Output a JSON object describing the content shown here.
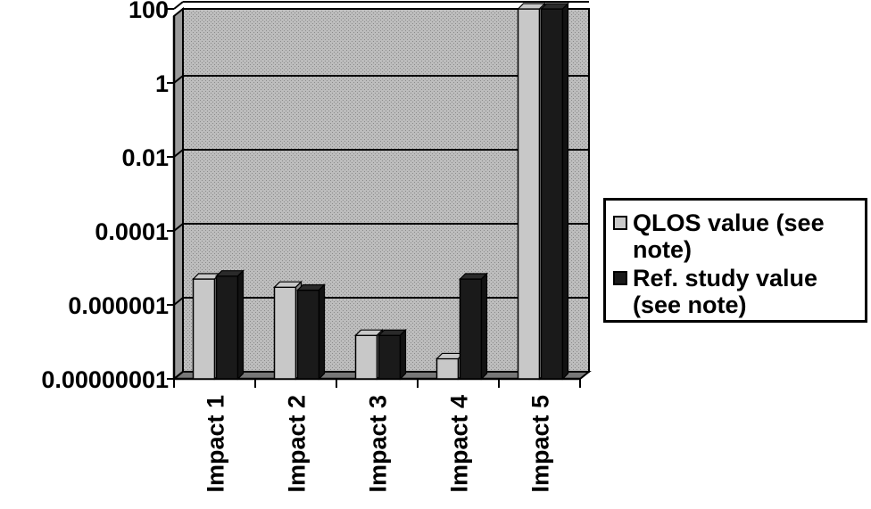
{
  "chart_data": {
    "type": "bar",
    "categories": [
      "Impact 1",
      "Impact 2",
      "Impact 3",
      "Impact 4",
      "Impact 5"
    ],
    "series": [
      {
        "name": "QLOS value (see note)",
        "color": "#c8c8c8",
        "values": [
          5e-06,
          3e-06,
          1.5e-07,
          3.5e-08,
          100
        ]
      },
      {
        "name": "Ref. study value (see note)",
        "color": "#1a1a1a",
        "values": [
          6e-06,
          2.5e-06,
          1.5e-07,
          5e-06,
          100
        ]
      }
    ],
    "y_scale": "log",
    "ylim": [
      1e-08,
      100
    ],
    "yticks": [
      "100",
      "1",
      "0.01",
      "0.0001",
      "0.000001",
      "0.00000001"
    ],
    "grid": true,
    "legend_position": "right",
    "title": "",
    "xlabel": "",
    "ylabel": ""
  }
}
